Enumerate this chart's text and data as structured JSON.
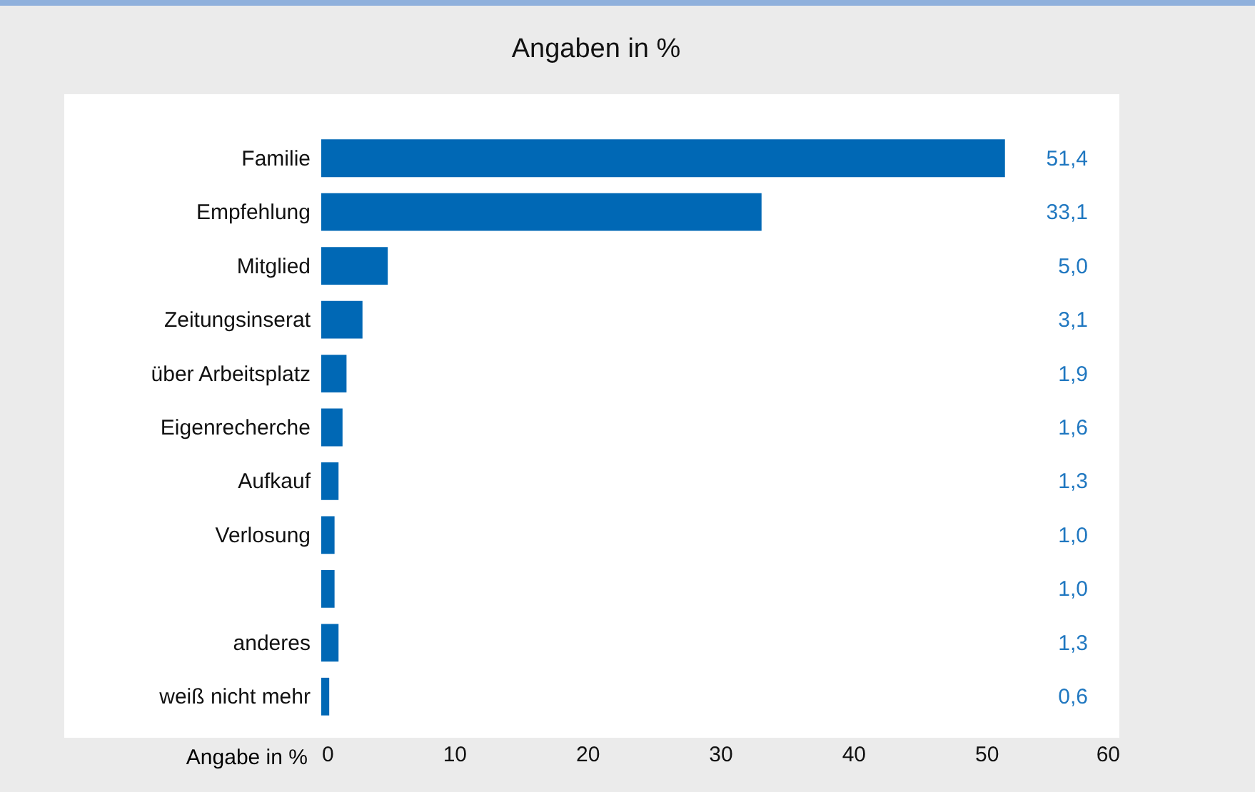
{
  "chart_data": {
    "type": "bar",
    "orientation": "horizontal",
    "title": "Angaben in %",
    "xlabel": "Angabe in %",
    "categories": [
      "Familie",
      "Empfehlung",
      "Mitglied",
      "Zeitungsinserat",
      "über Arbeitsplatz",
      "Eigenrecherche",
      "Aufkauf",
      "Verlosung",
      null,
      "anderes",
      "weiß nicht mehr"
    ],
    "values": [
      51.4,
      33.1,
      5.0,
      3.1,
      1.9,
      1.6,
      1.3,
      1.0,
      1.0,
      1.3,
      0.6
    ],
    "value_labels": [
      "51,4",
      "33,1",
      "5,0",
      "3,1",
      "1,9",
      "1,6",
      "1,3",
      "1,0",
      "1,0",
      "1,3",
      "0,6"
    ],
    "color": "#0068b5",
    "xlim": [
      0,
      60
    ],
    "xticks": [
      0,
      10,
      20,
      30,
      40,
      50,
      60
    ],
    "grid": false
  }
}
